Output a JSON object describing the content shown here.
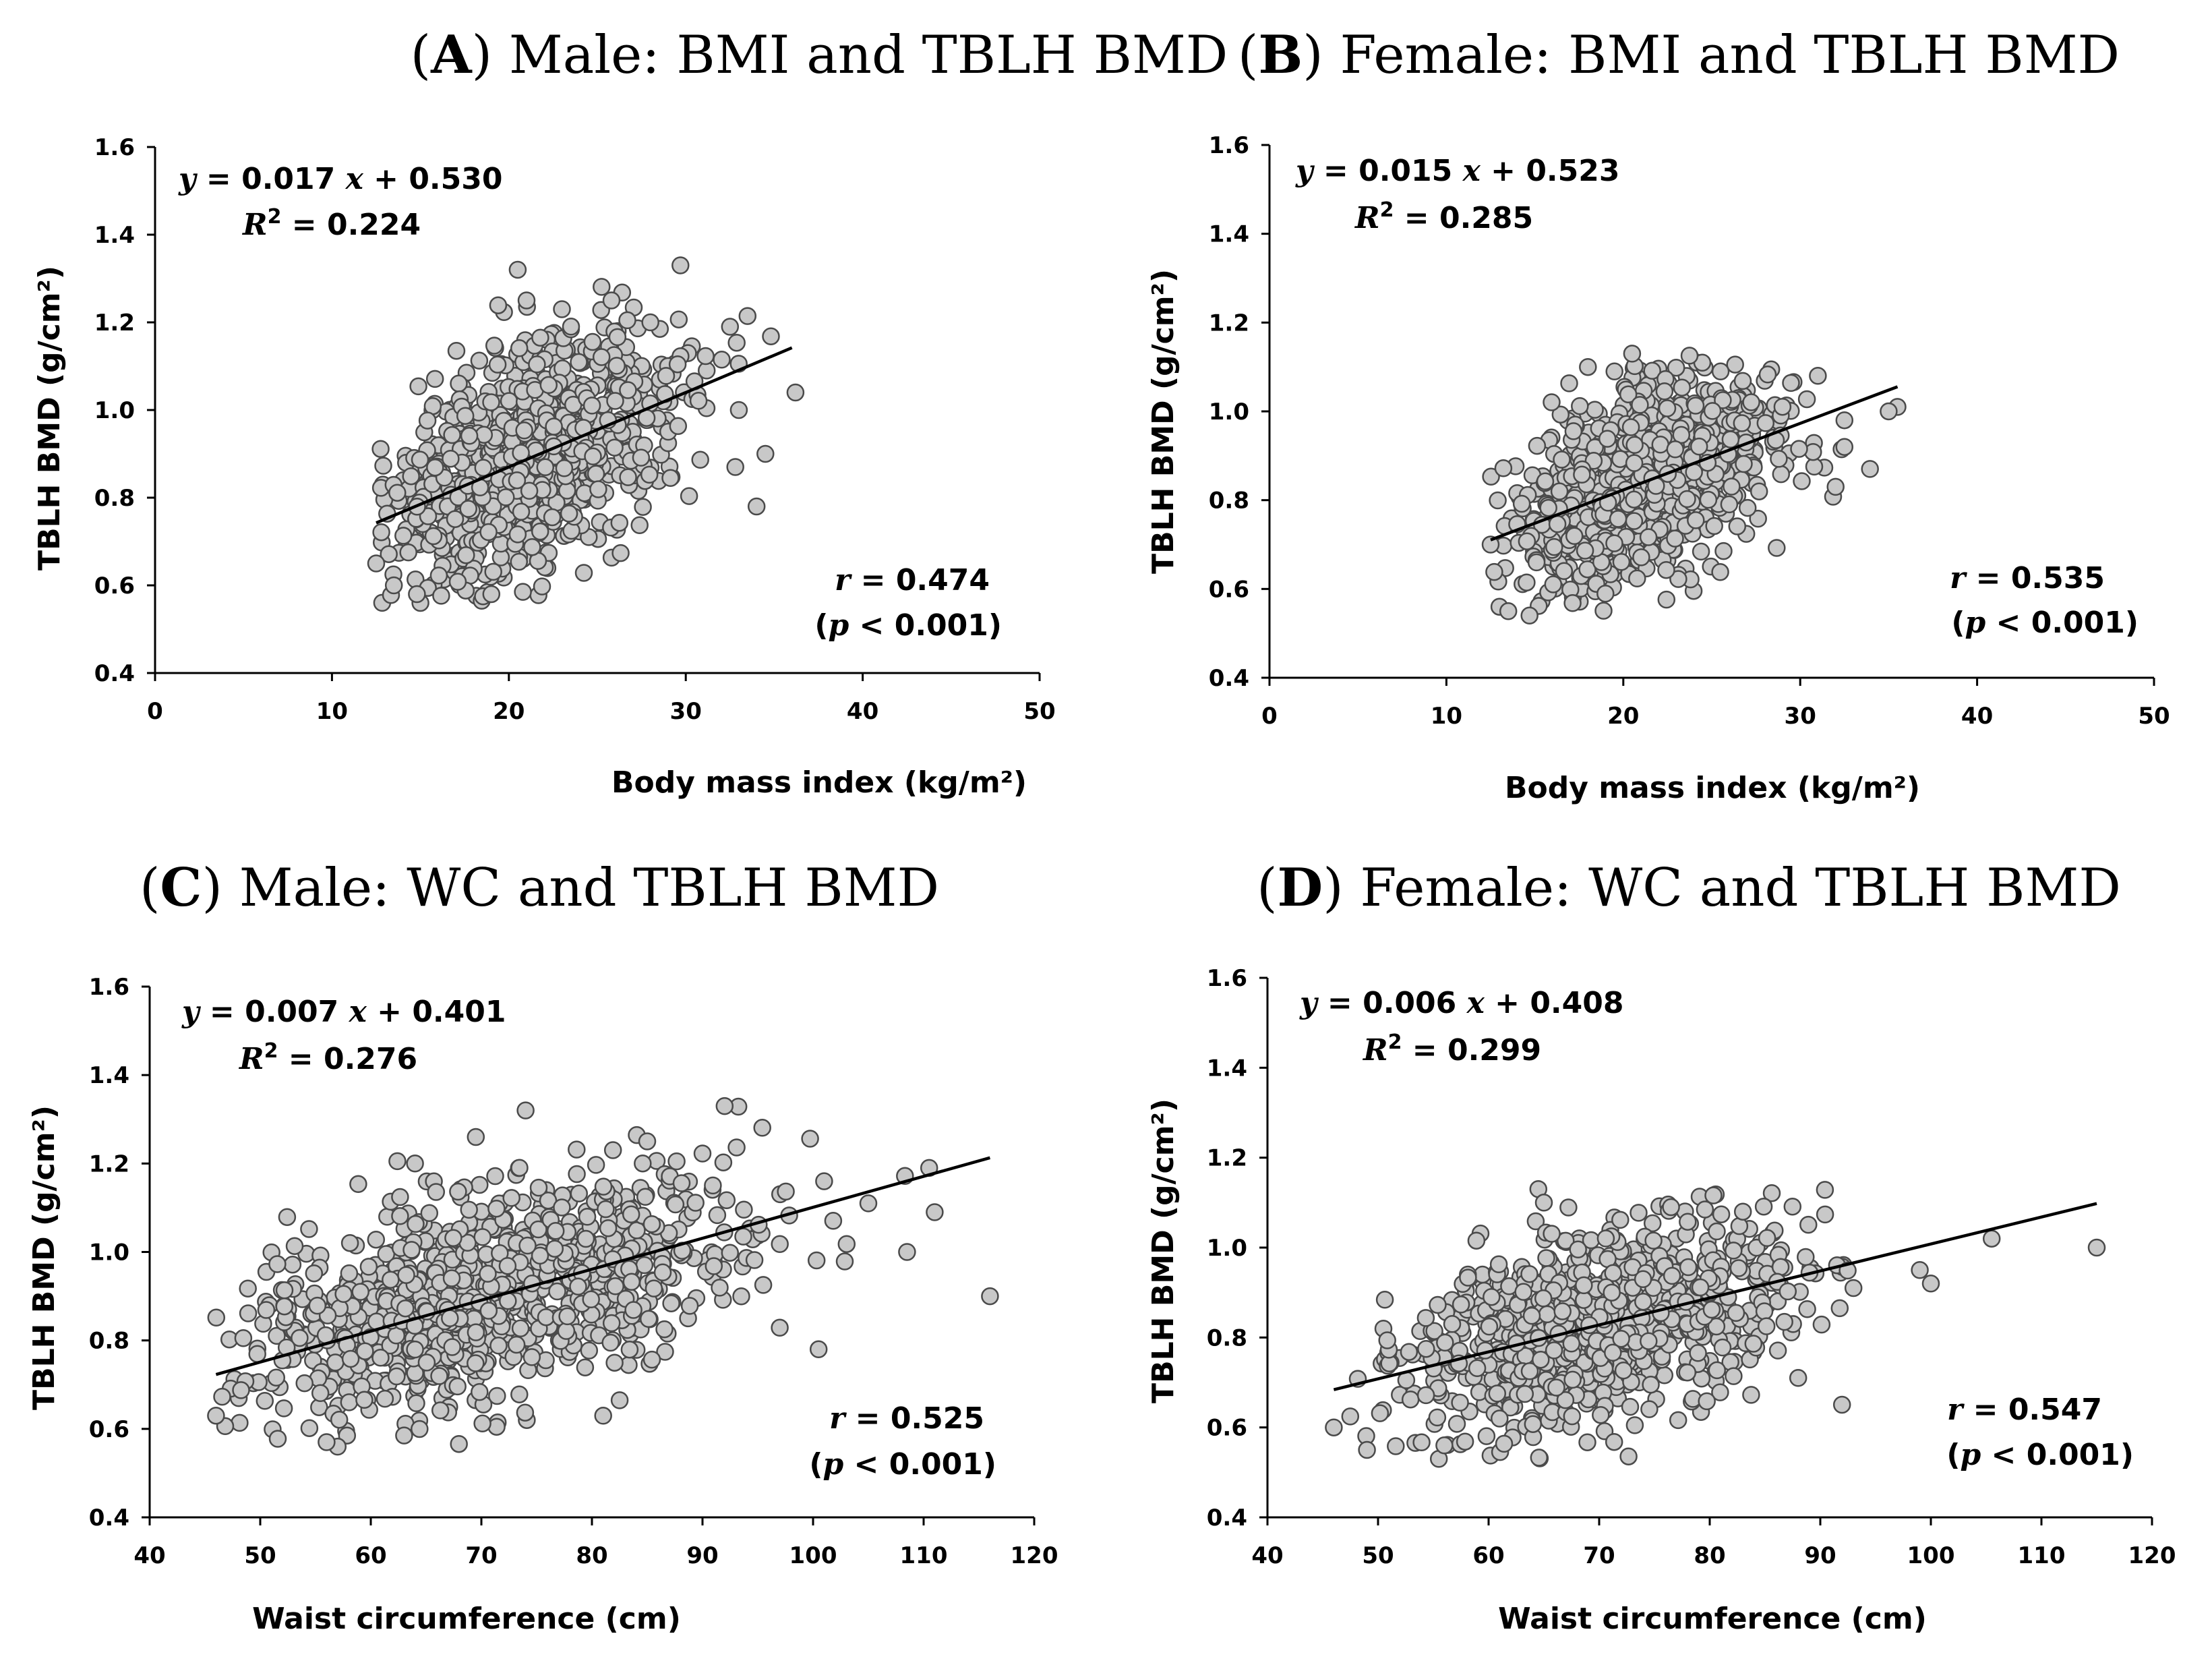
{
  "chart_data": [
    {
      "id": "A",
      "type": "scatter",
      "title_letter": "A",
      "title": "Male: BMI and TBLH BMD",
      "xlabel": "Body mass index (kg/m²)",
      "ylabel": "TBLH BMD (g/cm²)",
      "xlim": [
        0,
        50
      ],
      "ylim": [
        0.4,
        1.6
      ],
      "xticks": [
        0,
        10,
        20,
        30,
        40,
        50
      ],
      "yticks": [
        0.4,
        0.6,
        0.8,
        1.0,
        1.2,
        1.4,
        1.6
      ],
      "grid": false,
      "equation": {
        "slope": 0.017,
        "intercept": 0.53,
        "text_y": "y",
        "text_eq": " = 0.017 ",
        "text_x": "x",
        "text_rest": " + 0.530"
      },
      "r_squared": {
        "label": "R",
        "sup": "2",
        "text": " = 0.224"
      },
      "correlation": {
        "r_label": "r",
        "r_text": " = 0.474",
        "p_open": "(",
        "p_label": "p",
        "p_text": " < 0.001)"
      },
      "regression_x_range": [
        12.5,
        36
      ],
      "points_summary": {
        "n": 1000,
        "x_mean": 21,
        "x_sd": 4.0,
        "x_range": [
          12.5,
          36.5
        ],
        "y_sd": 0.12,
        "y_range": [
          0.56,
          1.34
        ],
        "seed": 11
      },
      "points": [
        [
          20.5,
          1.32
        ],
        [
          29.7,
          1.33
        ],
        [
          21.0,
          1.25
        ],
        [
          25.8,
          1.25
        ],
        [
          23.0,
          1.23
        ],
        [
          28.0,
          1.2
        ],
        [
          36.2,
          1.04
        ],
        [
          34.0,
          0.78
        ],
        [
          34.5,
          0.9
        ],
        [
          32.8,
          0.87
        ],
        [
          33.0,
          1.0
        ],
        [
          32.5,
          1.19
        ],
        [
          15.0,
          0.56
        ],
        [
          14.8,
          0.58
        ],
        [
          12.5,
          0.65
        ],
        [
          13.5,
          0.6
        ]
      ]
    },
    {
      "id": "B",
      "type": "scatter",
      "title_letter": "B",
      "title": "Female: BMI and TBLH BMD",
      "xlabel": "Body mass index (kg/m²)",
      "ylabel": "TBLH BMD (g/cm²)",
      "xlim": [
        0,
        50
      ],
      "ylim": [
        0.4,
        1.6
      ],
      "xticks": [
        0,
        10,
        20,
        30,
        40,
        50
      ],
      "yticks": [
        0.4,
        0.6,
        0.8,
        1.0,
        1.2,
        1.4,
        1.6
      ],
      "grid": false,
      "equation": {
        "slope": 0.015,
        "intercept": 0.523,
        "text_y": "y",
        "text_eq": " = 0.015 ",
        "text_x": "x",
        "text_rest": " + 0.523"
      },
      "r_squared": {
        "label": "R",
        "sup": "2",
        "text": " =  0.285"
      },
      "correlation": {
        "r_label": "r",
        "r_text": " = 0.535",
        "p_open": "(",
        "p_label": "p",
        "p_text": " < 0.001)"
      },
      "regression_x_range": [
        12.5,
        35.5
      ],
      "points_summary": {
        "n": 900,
        "x_mean": 21,
        "x_sd": 3.8,
        "x_range": [
          12.5,
          35.8
        ],
        "y_sd": 0.1,
        "y_range": [
          0.54,
          1.13
        ],
        "seed": 23
      },
      "points": [
        [
          20.5,
          1.13
        ],
        [
          18.0,
          1.1
        ],
        [
          19.5,
          1.09
        ],
        [
          25.5,
          1.09
        ],
        [
          31.0,
          1.08
        ],
        [
          35.5,
          1.01
        ],
        [
          35.0,
          1.0
        ],
        [
          32.5,
          0.98
        ],
        [
          32.5,
          0.92
        ],
        [
          32.0,
          0.83
        ],
        [
          13.0,
          0.56
        ],
        [
          13.5,
          0.55
        ],
        [
          14.7,
          0.54
        ],
        [
          12.5,
          0.7
        ]
      ]
    },
    {
      "id": "C",
      "type": "scatter",
      "title_letter": "C",
      "title": "Male: WC and TBLH BMD",
      "xlabel": "Waist circumference (cm)",
      "ylabel": "TBLH BMD (g/cm²)",
      "xlim": [
        40,
        120
      ],
      "ylim": [
        0.4,
        1.6
      ],
      "xticks": [
        40,
        50,
        60,
        70,
        80,
        90,
        100,
        110,
        120
      ],
      "yticks": [
        0.4,
        0.6,
        0.8,
        1.0,
        1.2,
        1.4,
        1.6
      ],
      "grid": false,
      "equation": {
        "slope": 0.007,
        "intercept": 0.401,
        "text_y": "y",
        "text_eq": " = 0.007 ",
        "text_x": "x",
        "text_rest": " + 0.401"
      },
      "r_squared": {
        "label": "R",
        "sup": "2",
        "text": " =  0.276"
      },
      "correlation": {
        "r_label": "r",
        "r_text": " = 0.525",
        "p_open": "(",
        "p_label": "p",
        "p_text": " < 0.001)"
      },
      "regression_x_range": [
        46,
        116
      ],
      "points_summary": {
        "n": 1000,
        "x_mean": 71,
        "x_sd": 11,
        "x_range": [
          46,
          116
        ],
        "y_sd": 0.12,
        "y_range": [
          0.56,
          1.34
        ],
        "seed": 37
      },
      "points": [
        [
          74.0,
          1.32
        ],
        [
          92.0,
          1.33
        ],
        [
          69.5,
          1.26
        ],
        [
          64.0,
          1.2
        ],
        [
          85.0,
          1.25
        ],
        [
          110.5,
          1.19
        ],
        [
          101.0,
          1.16
        ],
        [
          105.0,
          1.11
        ],
        [
          111.0,
          1.09
        ],
        [
          116.0,
          0.9
        ],
        [
          108.5,
          1.0
        ],
        [
          100.5,
          0.78
        ],
        [
          46.0,
          0.63
        ],
        [
          57.0,
          0.56
        ],
        [
          56.0,
          0.57
        ]
      ]
    },
    {
      "id": "D",
      "type": "scatter",
      "title_letter": "D",
      "title": "Female: WC and TBLH BMD",
      "xlabel": "Waist circumference (cm)",
      "ylabel": "TBLH BMD (g/cm²)",
      "xlim": [
        40,
        120
      ],
      "ylim": [
        0.4,
        1.6
      ],
      "xticks": [
        40,
        50,
        60,
        70,
        80,
        90,
        100,
        110,
        120
      ],
      "yticks": [
        0.4,
        0.6,
        0.8,
        1.0,
        1.2,
        1.4,
        1.6
      ],
      "grid": false,
      "equation": {
        "slope": 0.006,
        "intercept": 0.408,
        "text_y": "y",
        "text_eq": " = 0.006 ",
        "text_x": "x",
        "text_rest": " + 0.408"
      },
      "r_squared": {
        "label": "R",
        "sup": "2",
        "text": " = 0.299"
      },
      "correlation": {
        "r_label": "r",
        "r_text": " = 0.547",
        "p_open": "(",
        "p_label": "p",
        "p_text": " < 0.001)"
      },
      "regression_x_range": [
        46,
        115
      ],
      "points_summary": {
        "n": 900,
        "x_mean": 70,
        "x_sd": 9,
        "x_range": [
          46,
          115
        ],
        "y_sd": 0.1,
        "y_range": [
          0.53,
          1.13
        ],
        "seed": 53
      },
      "points": [
        [
          64.5,
          1.13
        ],
        [
          65.0,
          1.1
        ],
        [
          76.5,
          1.09
        ],
        [
          83.0,
          1.08
        ],
        [
          115.0,
          1.0
        ],
        [
          105.5,
          1.02
        ],
        [
          99.0,
          0.95
        ],
        [
          100.0,
          0.92
        ],
        [
          93.0,
          0.91
        ],
        [
          88.0,
          0.71
        ],
        [
          46.0,
          0.6
        ],
        [
          49.0,
          0.55
        ],
        [
          55.5,
          0.53
        ],
        [
          56.0,
          0.56
        ]
      ]
    }
  ]
}
